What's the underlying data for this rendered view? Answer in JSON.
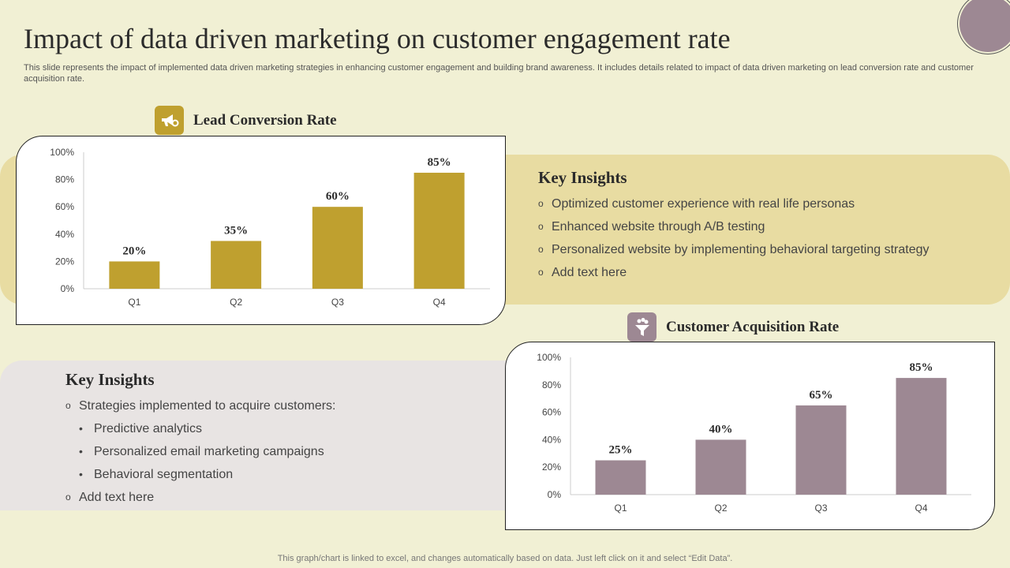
{
  "header": {
    "title": "Impact of data driven marketing on customer engagement rate",
    "subtitle": "This slide represents the impact of implemented data driven marketing strategies in enhancing customer engagement and building brand awareness. It includes details related to impact of data driven marketing on lead conversion rate and customer acquisition rate."
  },
  "sections": {
    "lead": {
      "title": "Lead Conversion Rate",
      "icon": "megaphone-icon"
    },
    "acquisition": {
      "title": "Customer Acquisition Rate",
      "icon": "funnel-icon"
    }
  },
  "insights_top": {
    "title": "Key Insights",
    "items": [
      "Optimized customer experience with real life personas",
      "Enhanced website through A/B testing",
      "Personalized website by implementing behavioral targeting strategy",
      "Add text here"
    ]
  },
  "insights_bottom": {
    "title": "Key Insights",
    "intro": "Strategies implemented to acquire customers:",
    "subitems": [
      "Predictive analytics",
      "Personalized email marketing campaigns",
      "Behavioral segmentation"
    ],
    "last": "Add text here"
  },
  "footer": "This graph/chart is linked to excel,  and changes automatically based on data. Just left click on it and select “Edit Data”.",
  "colors": {
    "gold": "#bfa02f",
    "mauve": "#9d8893"
  },
  "chart_data": [
    {
      "type": "bar",
      "title": "Lead Conversion Rate",
      "categories": [
        "Q1",
        "Q2",
        "Q3",
        "Q4"
      ],
      "values": [
        20,
        35,
        60,
        85
      ],
      "data_labels": [
        "20%",
        "35%",
        "60%",
        "85%"
      ],
      "yticks": [
        "0%",
        "20%",
        "40%",
        "60%",
        "80%",
        "100%"
      ],
      "ylim": [
        0,
        100
      ],
      "color": "#bfa02f"
    },
    {
      "type": "bar",
      "title": "Customer Acquisition Rate",
      "categories": [
        "Q1",
        "Q2",
        "Q3",
        "Q4"
      ],
      "values": [
        25,
        40,
        65,
        85
      ],
      "data_labels": [
        "25%",
        "40%",
        "65%",
        "85%"
      ],
      "yticks": [
        "0%",
        "20%",
        "40%",
        "60%",
        "80%",
        "100%"
      ],
      "ylim": [
        0,
        100
      ],
      "color": "#9d8893"
    }
  ]
}
